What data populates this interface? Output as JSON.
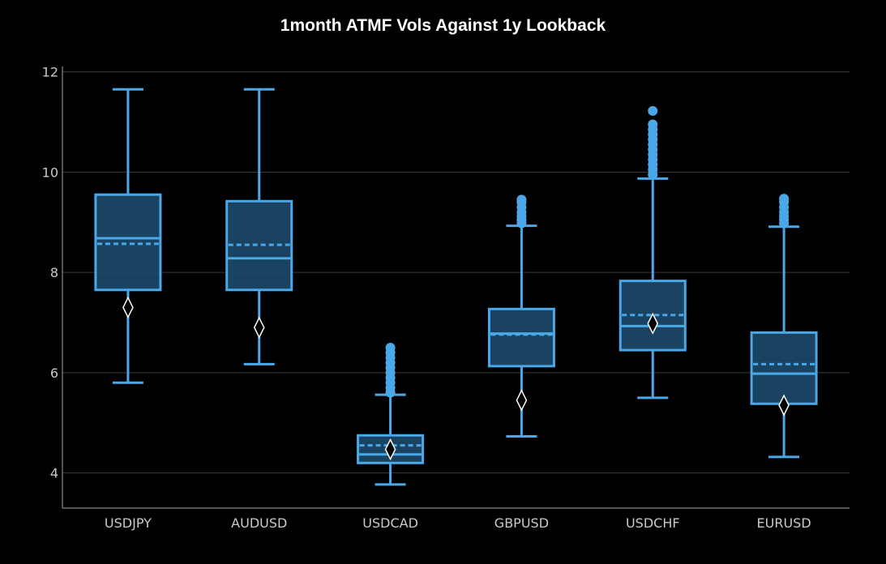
{
  "chart_data": {
    "type": "box",
    "title": "1month ATMF Vols Against 1y Lookback",
    "xlabel": "",
    "ylabel": "",
    "ylim": [
      3.3,
      12.3
    ],
    "yticks": [
      4,
      6,
      8,
      10,
      12
    ],
    "grid": true,
    "colors": {
      "box_stroke": "#4aa8e8",
      "box_fill": "#1f4f72",
      "grid": "#3a3a3a",
      "axis": "#8a8a8a",
      "marker_fill": "#000000",
      "marker_stroke": "#ffffff"
    },
    "categories": [
      "USDJPY",
      "AUDUSD",
      "USDCAD",
      "GBPUSD",
      "USDCHF",
      "EURUSD"
    ],
    "series": [
      {
        "category": "USDJPY",
        "whisker_low": 5.8,
        "q1": 7.65,
        "median": 8.68,
        "q3": 9.55,
        "whisker_high": 11.65,
        "mean": 8.57,
        "marker": 7.3,
        "outliers": []
      },
      {
        "category": "AUDUSD",
        "whisker_low": 6.17,
        "q1": 7.65,
        "median": 8.28,
        "q3": 9.42,
        "whisker_high": 11.65,
        "mean": 8.55,
        "marker": 6.9,
        "outliers": []
      },
      {
        "category": "USDCAD",
        "whisker_low": 3.77,
        "q1": 4.2,
        "median": 4.37,
        "q3": 4.75,
        "whisker_high": 5.56,
        "mean": 4.55,
        "marker": 4.47,
        "outliers": [
          5.6,
          5.7,
          5.8,
          5.9,
          6.0,
          6.1,
          6.2,
          6.3,
          6.4,
          6.5
        ]
      },
      {
        "category": "GBPUSD",
        "whisker_low": 4.73,
        "q1": 6.13,
        "median": 6.78,
        "q3": 7.27,
        "whisker_high": 8.93,
        "mean": 6.76,
        "marker": 5.45,
        "outliers": [
          8.98,
          9.05,
          9.12,
          9.2,
          9.3,
          9.4,
          9.45
        ]
      },
      {
        "category": "USDCHF",
        "whisker_low": 5.5,
        "q1": 6.45,
        "median": 6.93,
        "q3": 7.83,
        "whisker_high": 9.87,
        "mean": 7.15,
        "marker": 6.98,
        "outliers": [
          9.95,
          10.05,
          10.15,
          10.25,
          10.35,
          10.45,
          10.55,
          10.65,
          10.75,
          10.85,
          10.95,
          11.22
        ]
      },
      {
        "category": "EURUSD",
        "whisker_low": 4.32,
        "q1": 5.38,
        "median": 5.98,
        "q3": 6.8,
        "whisker_high": 8.91,
        "mean": 6.17,
        "marker": 5.35,
        "outliers": [
          8.98,
          9.05,
          9.12,
          9.2,
          9.3,
          9.4,
          9.47
        ]
      }
    ]
  }
}
